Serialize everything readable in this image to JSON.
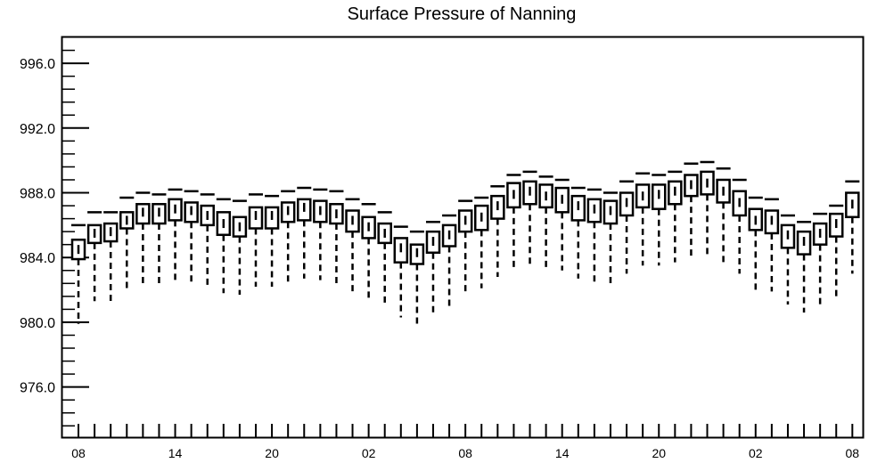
{
  "chart_data": {
    "type": "box",
    "title": "Surface Pressure of Nanning",
    "xlabel": "",
    "ylabel": "",
    "ylim": [
      972.9,
      997.6
    ],
    "yticks": [
      "996.0",
      "992.0",
      "988.0",
      "984.0",
      "980.0",
      "976.0"
    ],
    "xtick_labels": [
      "08",
      "14",
      "20",
      "02",
      "08",
      "14",
      "20",
      "02",
      "08"
    ],
    "xtick_positions": [
      0,
      6,
      12,
      18,
      24,
      30,
      36,
      42,
      48
    ],
    "grid": false,
    "x": [
      0,
      1,
      2,
      3,
      4,
      5,
      6,
      7,
      8,
      9,
      10,
      11,
      12,
      13,
      14,
      15,
      16,
      17,
      18,
      19,
      20,
      21,
      22,
      23,
      24,
      25,
      26,
      27,
      28,
      29,
      30,
      31,
      32,
      33,
      34,
      35,
      36,
      37,
      38,
      39,
      40,
      41,
      42,
      43,
      44,
      45,
      46,
      47,
      48
    ],
    "series": [
      {
        "q1": [
          983.9,
          984.9,
          985.0,
          985.8,
          986.1,
          986.1,
          986.3,
          986.2,
          986.0,
          985.4,
          985.3,
          985.8,
          985.8,
          986.2,
          986.3,
          986.2,
          986.1,
          985.6,
          985.2,
          984.9,
          983.7,
          983.6,
          984.3,
          984.7,
          985.6,
          985.7,
          986.4,
          987.1,
          987.3,
          987.1,
          986.8,
          986.3,
          986.2,
          986.1,
          986.6,
          987.1,
          987.0,
          987.3,
          987.8,
          987.9,
          987.4,
          986.6,
          985.7,
          985.5,
          984.6,
          984.2,
          984.8,
          985.3,
          986.5
        ],
        "median": [
          984.5,
          985.5,
          985.6,
          986.3,
          986.8,
          986.8,
          987.0,
          986.9,
          986.6,
          986.1,
          985.9,
          986.6,
          986.6,
          986.9,
          987.1,
          986.9,
          986.7,
          986.3,
          985.9,
          985.5,
          984.6,
          984.3,
          985.0,
          985.4,
          986.3,
          986.5,
          987.2,
          987.9,
          988.1,
          987.8,
          987.6,
          987.2,
          987.0,
          986.9,
          987.4,
          987.8,
          987.9,
          988.1,
          988.5,
          988.6,
          988.1,
          987.4,
          986.3,
          986.3,
          985.4,
          985.0,
          985.5,
          986.1,
          987.3
        ],
        "q3": [
          985.1,
          986.0,
          986.1,
          986.8,
          987.3,
          987.3,
          987.6,
          987.4,
          987.2,
          986.8,
          986.5,
          987.1,
          987.1,
          987.4,
          987.6,
          987.5,
          987.3,
          986.9,
          986.5,
          986.1,
          985.2,
          984.8,
          985.6,
          986.0,
          986.9,
          987.2,
          987.8,
          988.6,
          988.7,
          988.5,
          988.3,
          987.8,
          987.6,
          987.5,
          988.0,
          988.5,
          988.5,
          988.7,
          989.1,
          989.3,
          988.8,
          988.1,
          987.0,
          986.9,
          986.0,
          985.6,
          986.1,
          986.7,
          988.0
        ],
        "whisker_low": [
          979.9,
          981.3,
          981.2,
          982.0,
          982.2,
          982.2,
          982.4,
          982.4,
          982.3,
          981.8,
          981.7,
          982.2,
          982.2,
          982.5,
          982.7,
          982.6,
          982.4,
          981.9,
          981.5,
          981.0,
          980.3,
          979.9,
          980.6,
          980.8,
          981.9,
          982.1,
          982.8,
          983.3,
          983.5,
          983.4,
          983.2,
          982.7,
          982.5,
          982.4,
          983.0,
          983.5,
          983.5,
          983.7,
          984.1,
          984.2,
          983.7,
          983.0,
          982.0,
          981.9,
          981.1,
          980.6,
          981.0,
          981.6,
          983.0
        ],
        "whisker_high": [
          986.0,
          986.8,
          986.8,
          987.7,
          988.0,
          987.9,
          988.2,
          988.1,
          987.9,
          987.6,
          987.5,
          987.9,
          987.8,
          988.1,
          988.3,
          988.2,
          988.1,
          987.6,
          987.3,
          986.8,
          985.9,
          985.6,
          986.2,
          986.6,
          987.5,
          987.7,
          988.4,
          989.1,
          989.3,
          989.0,
          988.8,
          988.3,
          988.2,
          988.0,
          988.7,
          989.2,
          989.1,
          989.3,
          989.8,
          989.9,
          989.5,
          988.8,
          987.7,
          987.6,
          986.6,
          986.2,
          986.7,
          987.2,
          988.7
        ]
      }
    ]
  }
}
